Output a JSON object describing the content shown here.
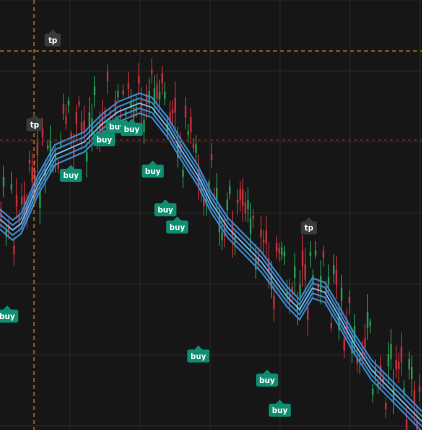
{
  "chart_data": {
    "type": "candlestick",
    "title": "",
    "grid": true,
    "x": [],
    "y": [],
    "colors": {
      "background": "#161616",
      "grid": "#262626",
      "up": "#2aa65a",
      "down": "#d0333f",
      "band": "#3d8fd6",
      "band_light": "#7fc4f2",
      "buy_marker": "#0f8f72",
      "tp_marker": "#3a3a3a",
      "crosshair": "#d98c1a",
      "level_line": "#8b2a2a"
    },
    "band_series": [
      {
        "label": "",
        "points": [
          [
            0,
            0.51
          ],
          [
            0.03,
            0.535
          ],
          [
            0.05,
            0.52
          ],
          [
            0.09,
            0.43
          ],
          [
            0.13,
            0.36
          ],
          [
            0.2,
            0.33
          ],
          [
            0.24,
            0.29
          ],
          [
            0.28,
            0.26
          ],
          [
            0.33,
            0.24
          ],
          [
            0.36,
            0.25
          ],
          [
            0.4,
            0.3
          ],
          [
            0.43,
            0.35
          ],
          [
            0.47,
            0.41
          ],
          [
            0.5,
            0.47
          ],
          [
            0.54,
            0.53
          ],
          [
            0.58,
            0.57
          ],
          [
            0.62,
            0.61
          ],
          [
            0.65,
            0.65
          ],
          [
            0.68,
            0.69
          ],
          [
            0.71,
            0.72
          ],
          [
            0.74,
            0.67
          ],
          [
            0.77,
            0.68
          ],
          [
            0.8,
            0.73
          ],
          [
            0.84,
            0.8
          ],
          [
            0.88,
            0.86
          ],
          [
            0.92,
            0.9
          ],
          [
            0.96,
            0.94
          ],
          [
            1,
            0.98
          ]
        ]
      }
    ],
    "markers": [
      {
        "text": "tp",
        "type": "tp",
        "x": 0.125,
        "y": 0.093
      },
      {
        "text": "tp",
        "type": "tp",
        "x": 0.082,
        "y": 0.29
      },
      {
        "text": "tp",
        "type": "tp",
        "x": 0.732,
        "y": 0.53
      },
      {
        "text": "buy",
        "type": "buy",
        "x": 0.017,
        "y": 0.735
      },
      {
        "text": "buy",
        "type": "buy",
        "x": 0.168,
        "y": 0.408
      },
      {
        "text": "buy",
        "type": "buy",
        "x": 0.247,
        "y": 0.325
      },
      {
        "text": "buy",
        "type": "buy",
        "x": 0.277,
        "y": 0.295
      },
      {
        "text": "buy",
        "type": "buy",
        "x": 0.312,
        "y": 0.301
      },
      {
        "text": "buy",
        "type": "buy",
        "x": 0.362,
        "y": 0.398
      },
      {
        "text": "buy",
        "type": "buy",
        "x": 0.392,
        "y": 0.488
      },
      {
        "text": "buy",
        "type": "buy",
        "x": 0.42,
        "y": 0.528
      },
      {
        "text": "buy",
        "type": "buy",
        "x": 0.47,
        "y": 0.828
      },
      {
        "text": "buy",
        "type": "buy",
        "x": 0.633,
        "y": 0.884
      },
      {
        "text": "buy",
        "type": "buy",
        "x": 0.663,
        "y": 0.954
      }
    ]
  }
}
